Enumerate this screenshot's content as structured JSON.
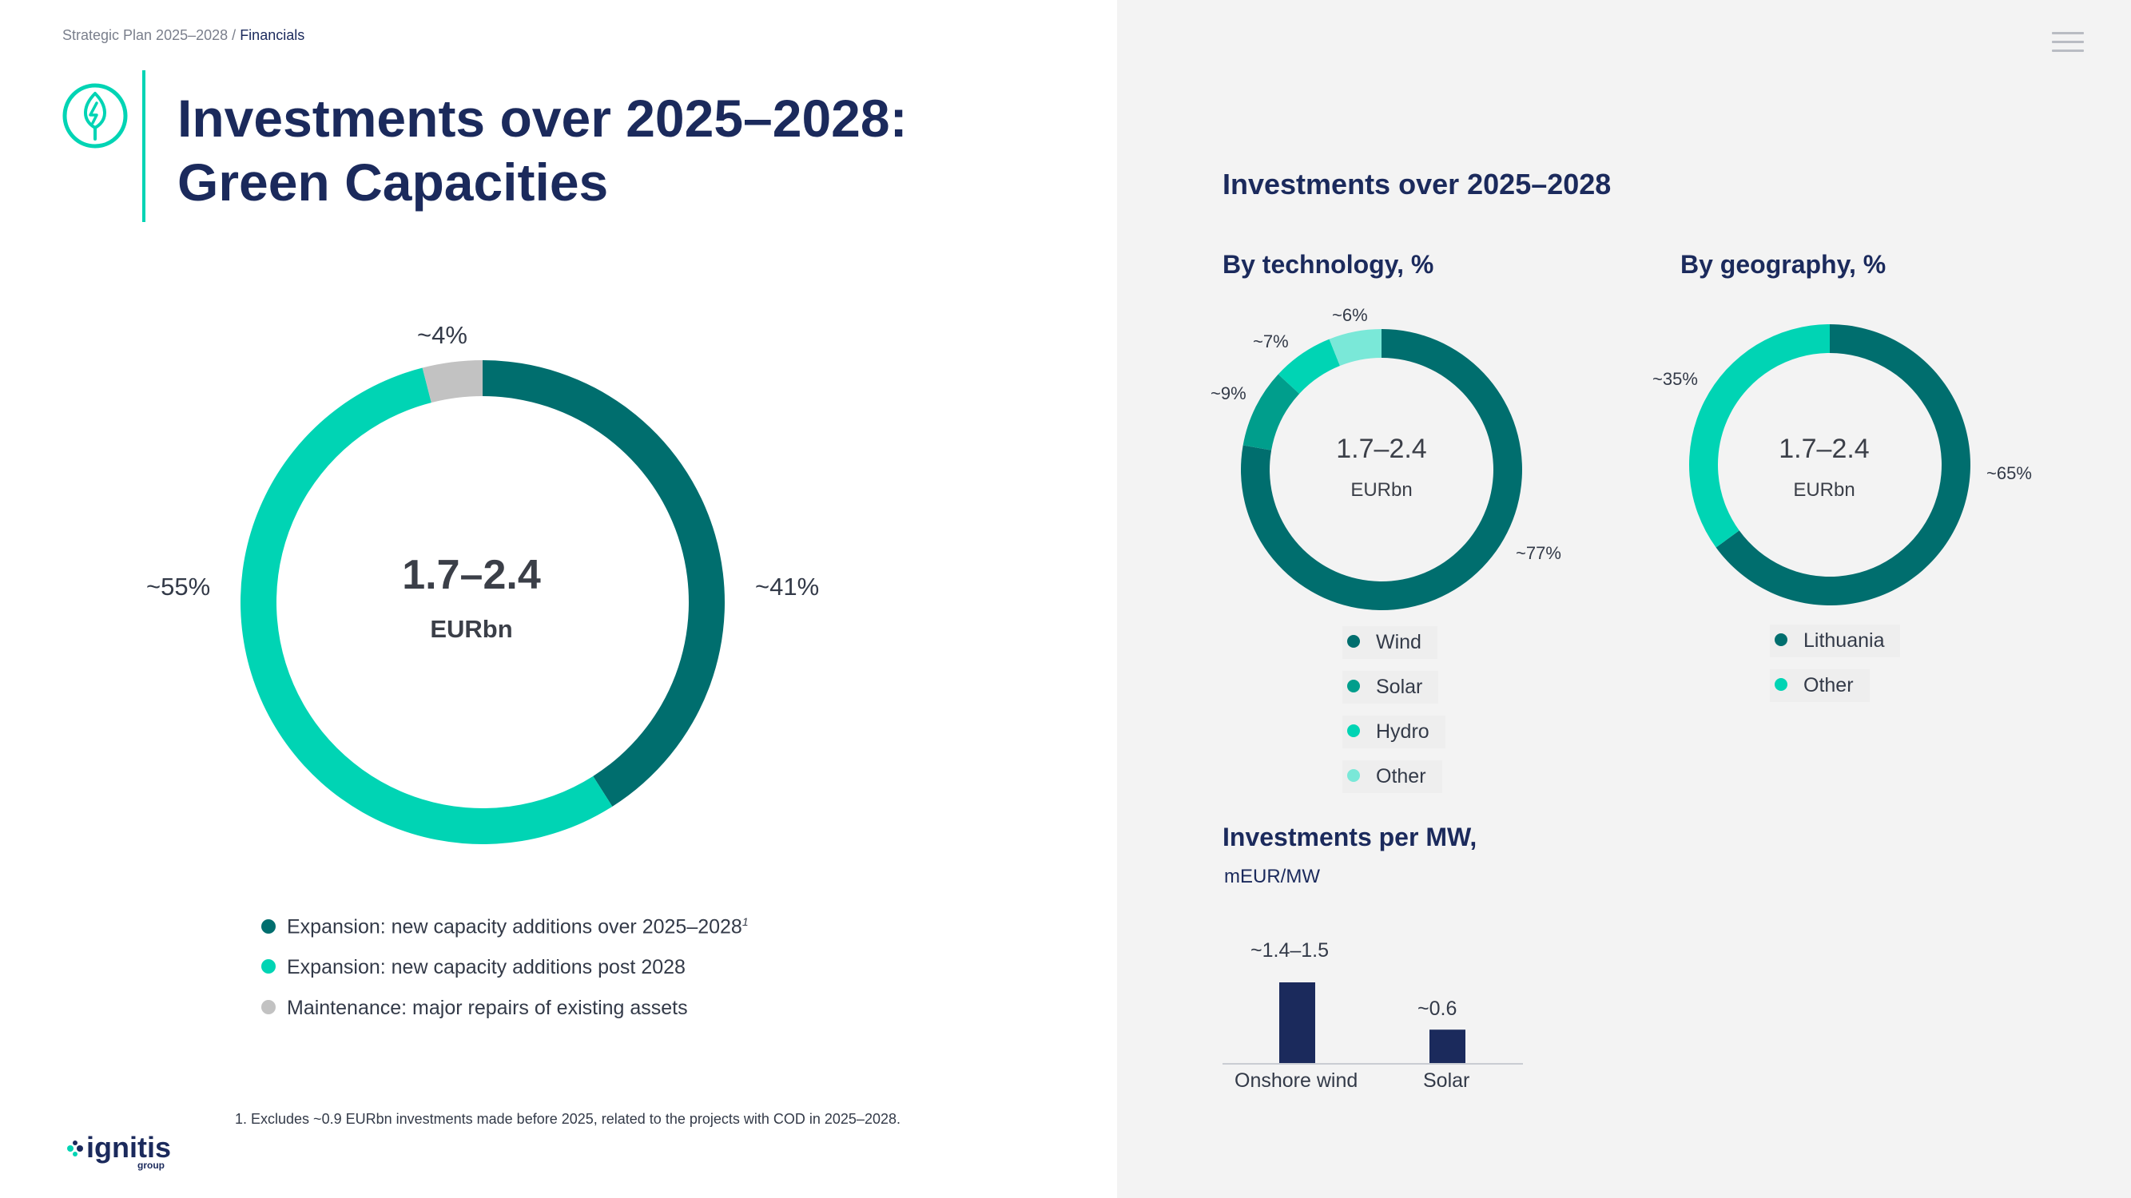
{
  "breadcrumb": {
    "section": "Strategic Plan 2025–2028",
    "separator": " / ",
    "current": "Financials"
  },
  "title": {
    "line1": "Investments over 2025–2028:",
    "line2": "Green Capacities"
  },
  "colors": {
    "dark_teal": "#006e6e",
    "mid_teal": "#009e8c",
    "bright_teal": "#00d4b4",
    "light_teal": "#7ae8d8",
    "grey": "#c2c2c2",
    "navy": "#1b2a5c"
  },
  "icons": {
    "menu": "hamburger-menu-icon",
    "section": "leaf-energy-icon",
    "logo": "ignitis-logo"
  },
  "chart_data": [
    {
      "type": "pie",
      "variant": "donut",
      "center_value": "1.7–2.4",
      "center_unit": "EURbn",
      "slices": [
        {
          "label": "Expansion: new capacity additions over 2025–2028",
          "footnote_ref": "1",
          "value": 41,
          "value_label": "~41%",
          "color": "#006e6e"
        },
        {
          "label": "Expansion: new capacity additions post 2028",
          "value": 55,
          "value_label": "~55%",
          "color": "#00d4b4"
        },
        {
          "label": "Maintenance: major repairs of existing assets",
          "value": 4,
          "value_label": "~4%",
          "color": "#c2c2c2"
        }
      ]
    },
    {
      "type": "pie",
      "variant": "donut",
      "title": "By technology, %",
      "center_value": "1.7–2.4",
      "center_unit": "EURbn",
      "slices": [
        {
          "label": "Wind",
          "value": 77,
          "value_label": "~77%",
          "color": "#006e6e"
        },
        {
          "label": "Solar",
          "value": 9,
          "value_label": "~9%",
          "color": "#009e8c"
        },
        {
          "label": "Hydro",
          "value": 7,
          "value_label": "~7%",
          "color": "#00d4b4"
        },
        {
          "label": "Other",
          "value": 6,
          "value_label": "~6%",
          "color": "#7ae8d8"
        }
      ]
    },
    {
      "type": "pie",
      "variant": "donut",
      "title": "By geography, %",
      "center_value": "1.7–2.4",
      "center_unit": "EURbn",
      "slices": [
        {
          "label": "Lithuania",
          "value": 65,
          "value_label": "~65%",
          "color": "#006e6e"
        },
        {
          "label": "Other",
          "value": 35,
          "value_label": "~35%",
          "color": "#00d4b4"
        }
      ]
    },
    {
      "type": "bar",
      "title": "Investments per MW,",
      "ylabel": "mEUR/MW",
      "categories": [
        "Onshore wind",
        "Solar"
      ],
      "values": [
        1.45,
        0.6
      ],
      "value_labels": [
        "~1.4–1.5",
        "~0.6"
      ],
      "color": "#1b2a5c"
    }
  ],
  "right_panel": {
    "title": "Investments over 2025–2028"
  },
  "footnote": "1.  Excludes ~0.9 EURbn investments made before 2025, related to the projects with COD in 2025–2028.",
  "logo": {
    "text": "ignitis",
    "sub": "group"
  }
}
